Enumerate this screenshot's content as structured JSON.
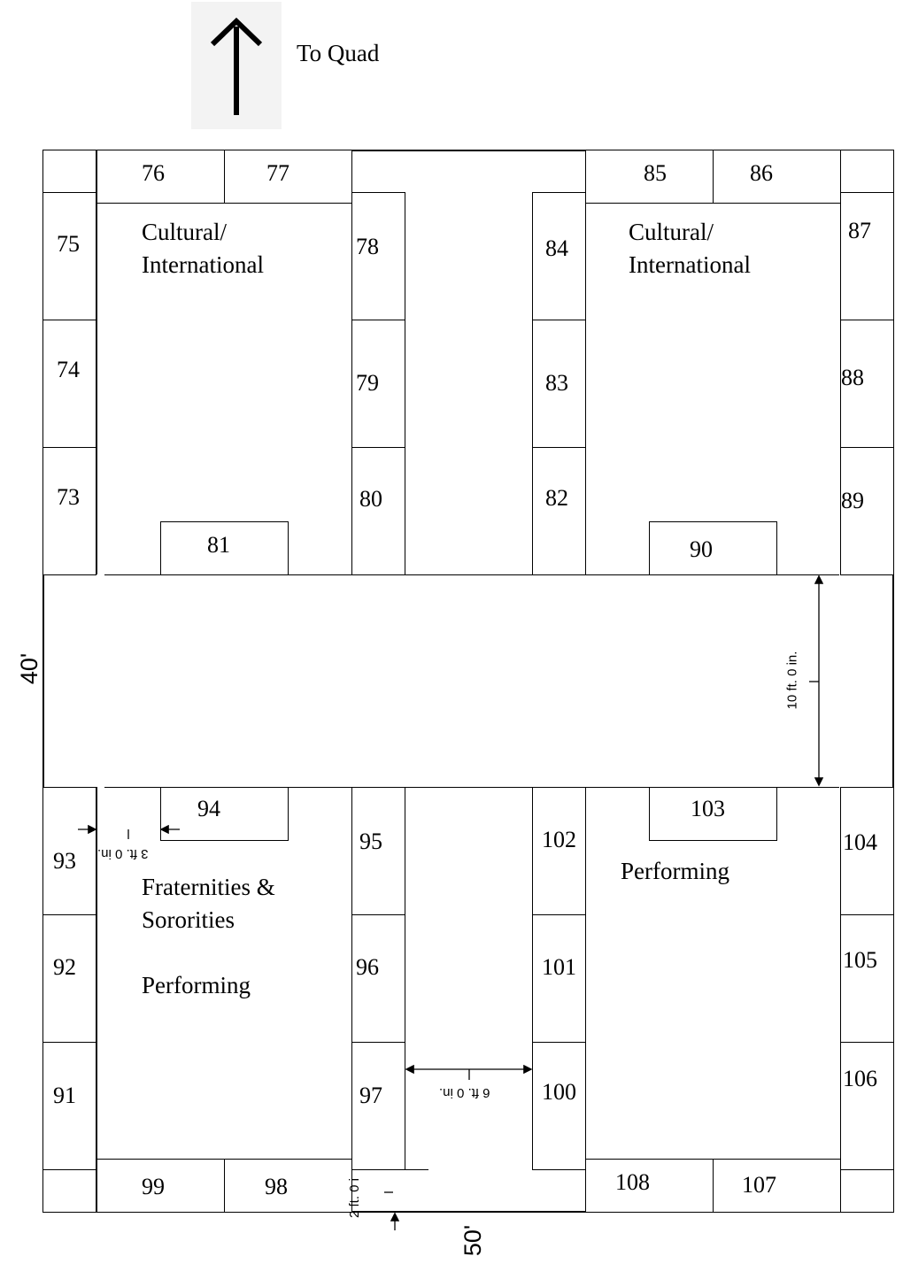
{
  "header": {
    "arrow_label": "To Quad",
    "arrow_icon": "up-arrow-icon"
  },
  "zones": {
    "top_left": [
      "Cultural/",
      "International"
    ],
    "top_right": [
      "Cultural/",
      "International"
    ],
    "bottom_left": [
      "Fraternities &",
      "Sororities",
      "",
      "Performing"
    ],
    "bottom_right": [
      "Performing"
    ]
  },
  "booths": {
    "b73": "73",
    "b74": "74",
    "b75": "75",
    "b76": "76",
    "b77": "77",
    "b78": "78",
    "b79": "79",
    "b80": "80",
    "b81": "81",
    "b82": "82",
    "b83": "83",
    "b84": "84",
    "b85": "85",
    "b86": "86",
    "b87": "87",
    "b88": "88",
    "b89": "89",
    "b90": "90",
    "b91": "91",
    "b92": "92",
    "b93": "93",
    "b94": "94",
    "b95": "95",
    "b96": "96",
    "b97": "97",
    "b98": "98",
    "b99": "99",
    "b100": "100",
    "b101": "101",
    "b102": "102",
    "b103": "103",
    "b104": "104",
    "b105": "105",
    "b106": "106",
    "b107": "107",
    "b108": "108"
  },
  "dimensions": {
    "aisle_height": "10 ft. 0 in.",
    "booth_gap": "3 ft. 0 in.",
    "center_aisle": "6 ft. 0 in.",
    "bottom_gap": "2 ft. 0 i",
    "overall_height": "40'",
    "overall_width": "50'"
  }
}
